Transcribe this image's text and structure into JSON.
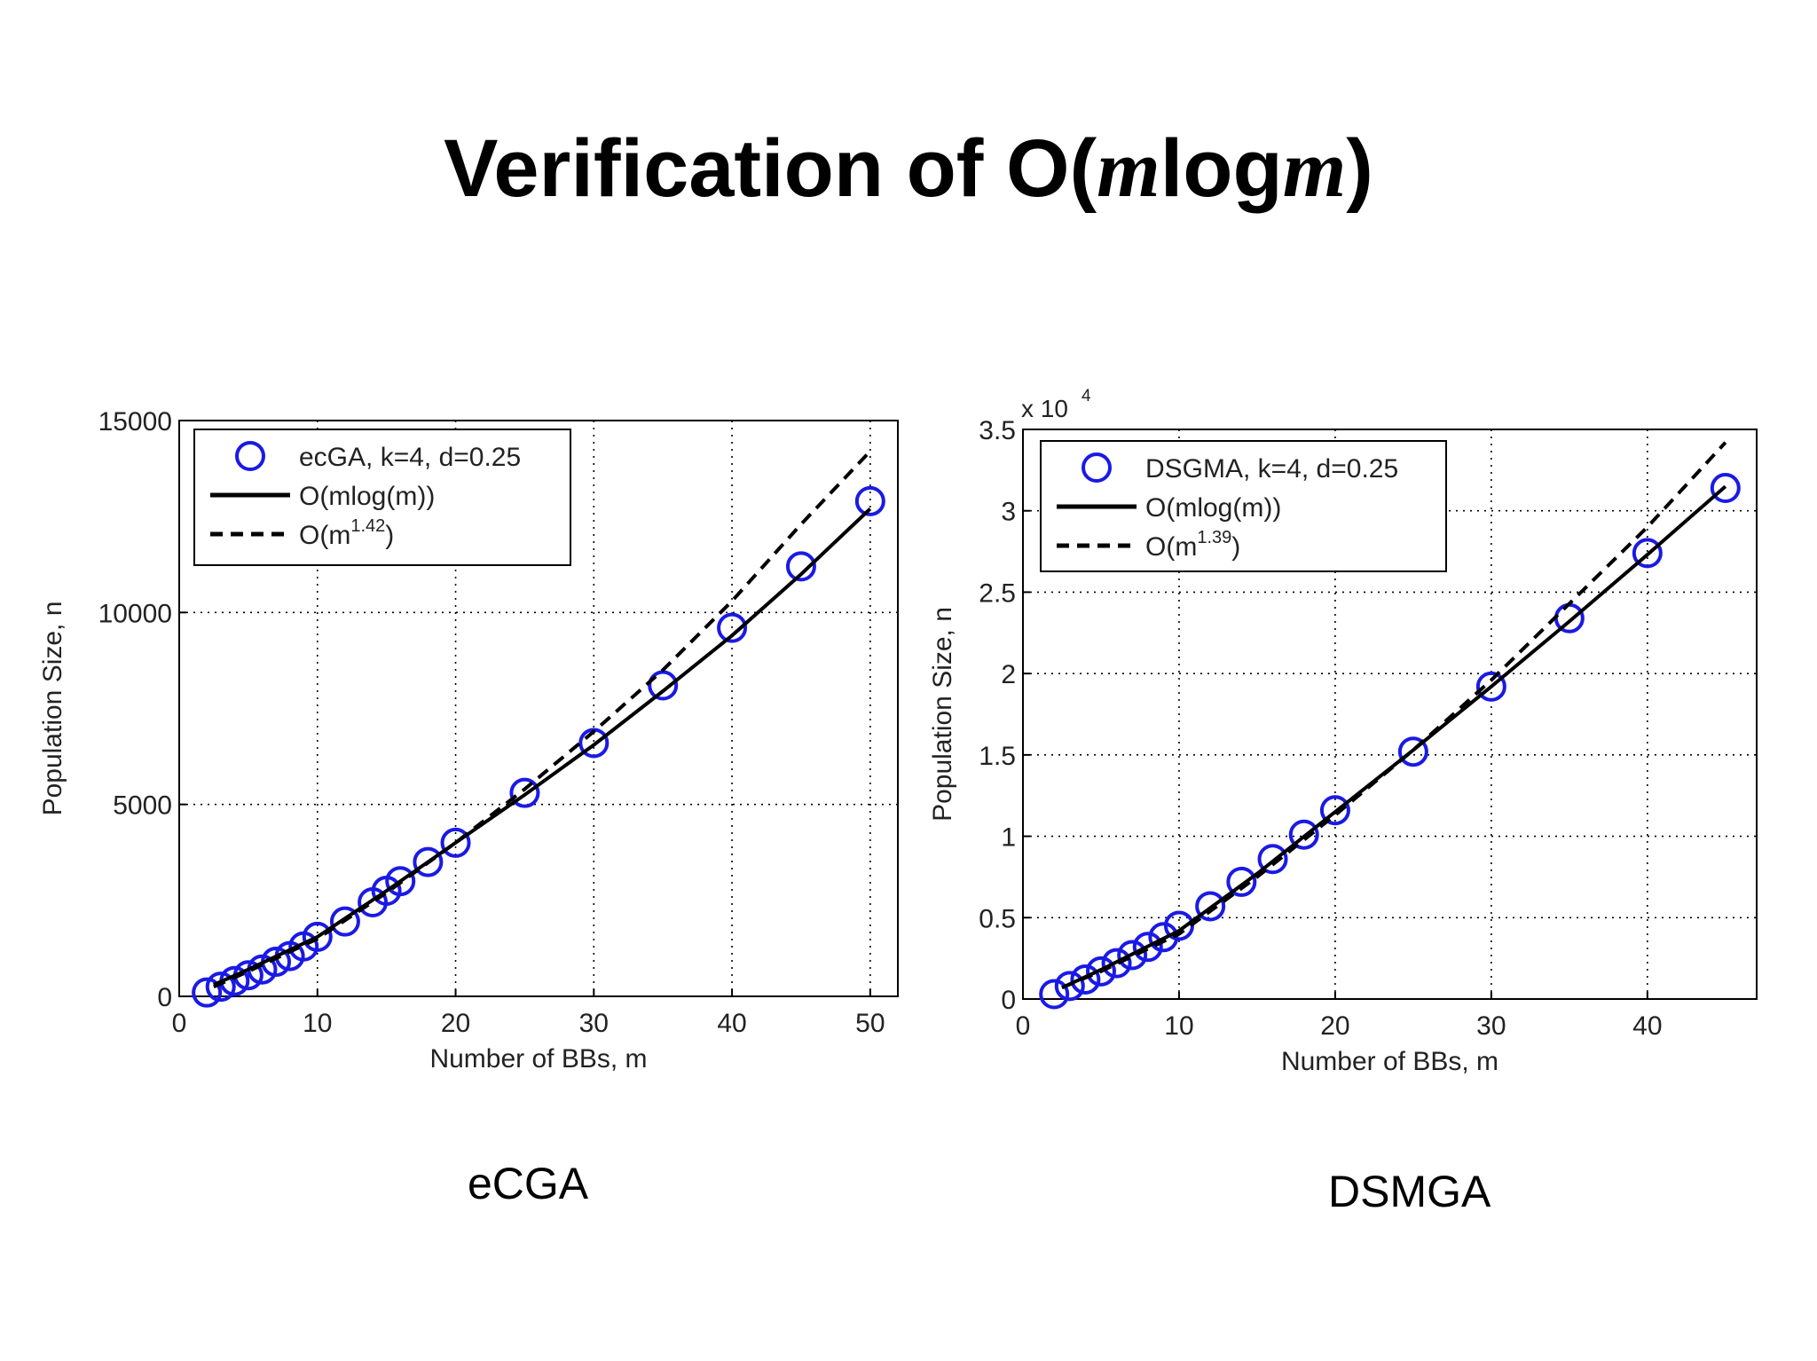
{
  "slide": {
    "title": {
      "prefix": "Verification of O(",
      "var1": "m",
      "mid": "log",
      "var2": "m",
      "suffix": ")"
    }
  },
  "chart_data": [
    {
      "type": "scatter",
      "caption": "eCGA",
      "xlabel": "Number of BBs, m",
      "ylabel": "Population Size, n",
      "xlim": [
        0,
        52
      ],
      "ylim": [
        0,
        15000
      ],
      "x_ticks": [
        "0",
        "10",
        "20",
        "30",
        "40",
        "50"
      ],
      "y_ticks": [
        "0",
        "5000",
        "10000",
        "15000"
      ],
      "y_multiplier": "",
      "grid": true,
      "legend_position": "top-left",
      "series": [
        {
          "name": "ecGA, k=4, d=0.25",
          "style": "circle-markers",
          "color": "#1a1ae6",
          "x": [
            2,
            3,
            4,
            5,
            6,
            7,
            8,
            9,
            10,
            12,
            14,
            15,
            16,
            18,
            20,
            25,
            30,
            35,
            40,
            45,
            50
          ],
          "y": [
            100,
            250,
            400,
            550,
            700,
            900,
            1050,
            1300,
            1550,
            1950,
            2450,
            2750,
            3000,
            3500,
            4000,
            5300,
            6600,
            8100,
            9600,
            11200,
            12900
          ]
        },
        {
          "name": "O(mlog(m))",
          "name_sup": "",
          "name_suffix": "",
          "style": "solid",
          "color": "#000000",
          "x": [
            2.5,
            5,
            10,
            15,
            20,
            25,
            30,
            35,
            40,
            45,
            50
          ],
          "y": [
            300,
            700,
            1550,
            2750,
            4000,
            5250,
            6550,
            7950,
            9400,
            11000,
            12700
          ]
        },
        {
          "name": "O(m",
          "name_sup": "1.42",
          "name_suffix": ")",
          "style": "dashed",
          "color": "#000000",
          "x": [
            2.5,
            5,
            10,
            15,
            20,
            25,
            30,
            35,
            40,
            45,
            50
          ],
          "y": [
            250,
            650,
            1500,
            2700,
            4000,
            5400,
            6900,
            8500,
            10300,
            12300,
            14200
          ]
        }
      ]
    },
    {
      "type": "scatter",
      "caption": "DSMGA",
      "xlabel": "Number of BBs, m",
      "ylabel": "Population Size, n",
      "xlim": [
        0,
        47
      ],
      "ylim": [
        0,
        3.5
      ],
      "x_ticks": [
        "0",
        "10",
        "20",
        "30",
        "40"
      ],
      "y_ticks": [
        "0",
        "0.5",
        "1",
        "1.5",
        "2",
        "2.5",
        "3",
        "3.5"
      ],
      "y_multiplier": "x 10",
      "y_multiplier_exp": "4",
      "grid": true,
      "legend_position": "top-left",
      "series": [
        {
          "name": "DSGMA, k=4, d=0.25",
          "style": "circle-markers",
          "color": "#1a1ae6",
          "x": [
            2,
            3,
            4,
            5,
            6,
            7,
            8,
            9,
            10,
            12,
            14,
            16,
            18,
            20,
            25,
            30,
            35,
            40,
            45
          ],
          "y": [
            0.03,
            0.08,
            0.12,
            0.17,
            0.22,
            0.27,
            0.32,
            0.38,
            0.45,
            0.57,
            0.72,
            0.86,
            1.01,
            1.16,
            1.52,
            1.92,
            2.34,
            2.74,
            3.14
          ]
        },
        {
          "name": "O(mlog(m))",
          "name_sup": "",
          "name_suffix": "",
          "style": "solid",
          "color": "#000000",
          "x": [
            2.5,
            5,
            10,
            15,
            20,
            25,
            30,
            35,
            40,
            45
          ],
          "y": [
            0.07,
            0.18,
            0.42,
            0.77,
            1.15,
            1.53,
            1.92,
            2.32,
            2.73,
            3.15
          ]
        },
        {
          "name": "O(m",
          "name_sup": "1.39",
          "name_suffix": ")",
          "style": "dashed",
          "color": "#000000",
          "x": [
            2.5,
            5,
            10,
            15,
            20,
            25,
            30,
            35,
            40,
            45
          ],
          "y": [
            0.07,
            0.17,
            0.4,
            0.75,
            1.13,
            1.53,
            1.96,
            2.43,
            2.9,
            3.42
          ]
        }
      ]
    }
  ]
}
